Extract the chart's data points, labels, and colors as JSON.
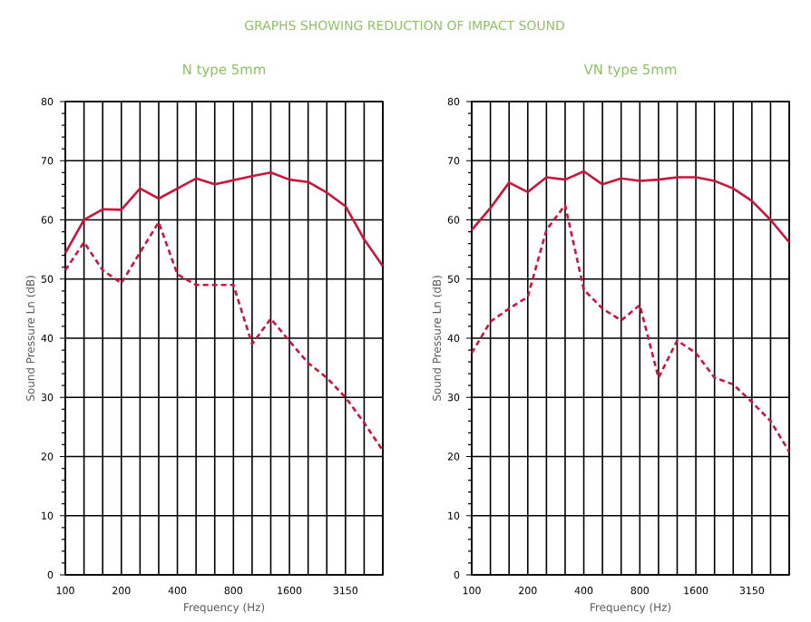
{
  "chart_data": [
    {
      "type": "line",
      "title": "N type 5mm",
      "annotations": [
        "GRAPHS SHOWING REDUCTION OF IMPACT SOUND"
      ],
      "xlabel": "Frequency (Hz)",
      "ylabel": "Sound Pressure Ln (dB)",
      "categories": [
        "100",
        null,
        null,
        "200",
        null,
        null,
        "400",
        null,
        null,
        "800",
        null,
        null,
        "1600",
        null,
        null,
        "3150",
        null,
        null
      ],
      "ylim": [
        0,
        80
      ],
      "yticks": [
        0,
        10,
        20,
        30,
        40,
        50,
        60,
        70,
        80
      ],
      "grid": true,
      "marker": "none",
      "series": [
        {
          "color": "#c8163c",
          "line_style": "solid",
          "values": [
            54.4,
            60,
            61.8,
            61.7,
            65.3,
            63.6,
            65.3,
            67,
            66,
            66.7,
            67.4,
            68,
            66.8,
            66.4,
            64.6,
            62.3,
            56.7,
            52.2
          ]
        },
        {
          "color": "#c8163c",
          "line_style": "dashed",
          "values": [
            51.5,
            56.2,
            51.5,
            49.3,
            54.5,
            59.6,
            50.8,
            49,
            49,
            49,
            39,
            43.3,
            39.5,
            35.8,
            33.3,
            30,
            25.7,
            21
          ]
        }
      ]
    },
    {
      "type": "line",
      "title": "VN type 5mm",
      "xlabel": "Frequency (Hz)",
      "ylabel": "Sound Pressure Ln (dB)",
      "categories": [
        "100",
        null,
        null,
        "200",
        null,
        null,
        "400",
        null,
        null,
        "800",
        null,
        null,
        "1600",
        null,
        null,
        "3150",
        null,
        null
      ],
      "ylim": [
        0,
        80
      ],
      "yticks": [
        0,
        10,
        20,
        30,
        40,
        50,
        60,
        70,
        80
      ],
      "grid": true,
      "marker": "none",
      "series": [
        {
          "color": "#c8163c",
          "line_style": "solid",
          "values": [
            58.3,
            62,
            66.3,
            64.7,
            67.2,
            66.8,
            68.2,
            66,
            67,
            66.6,
            66.8,
            67.2,
            67.2,
            66.6,
            65.3,
            63.2,
            60,
            56.2
          ]
        },
        {
          "color": "#c8163c",
          "line_style": "dashed",
          "values": [
            37.5,
            42.8,
            45,
            47,
            58.3,
            62.5,
            48.2,
            45,
            43,
            45.6,
            33.3,
            39.6,
            37.5,
            33.3,
            32.2,
            29.2,
            26,
            20.8
          ]
        }
      ]
    }
  ]
}
